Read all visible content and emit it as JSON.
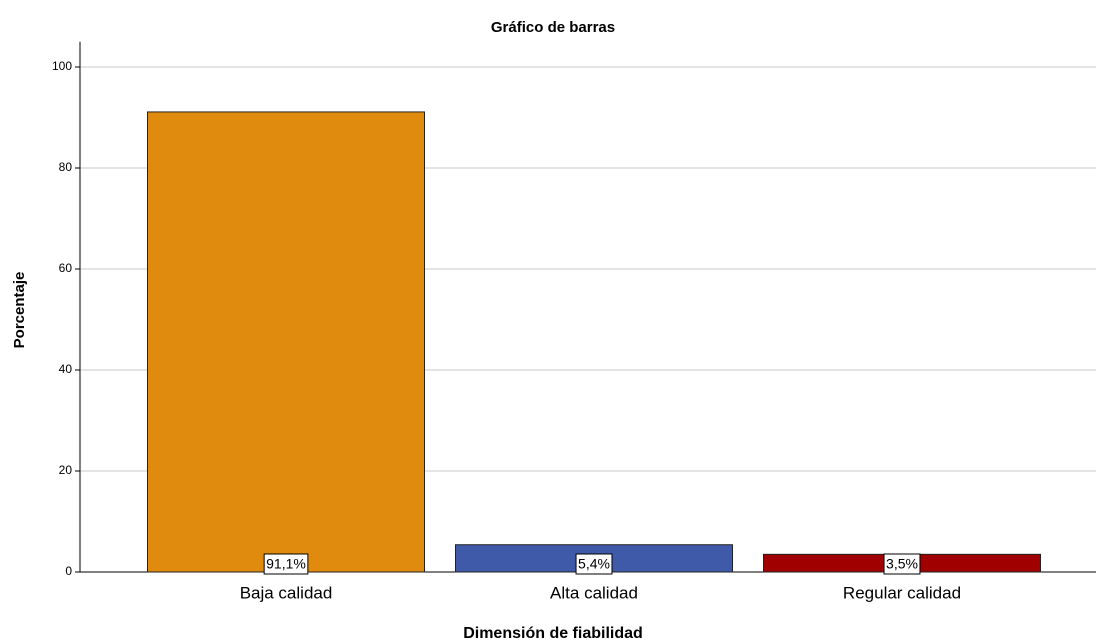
{
  "chart_data": {
    "type": "bar",
    "title": "Gráfico de barras",
    "x_label": "Dimensión de fiabilidad",
    "y_label": "Porcentaje",
    "categories": [
      "Baja calidad",
      "Alta calidad",
      "Regular calidad"
    ],
    "values": [
      91.1,
      5.4,
      3.5
    ],
    "value_labels": [
      "91,1%",
      "5,4%",
      "3,5%"
    ],
    "colors": [
      "#e08b0e",
      "#3e5aa8",
      "#a00000"
    ],
    "ylim": [
      0,
      105
    ],
    "yticks": [
      0,
      20,
      40,
      60,
      80,
      100
    ],
    "grid": true
  }
}
